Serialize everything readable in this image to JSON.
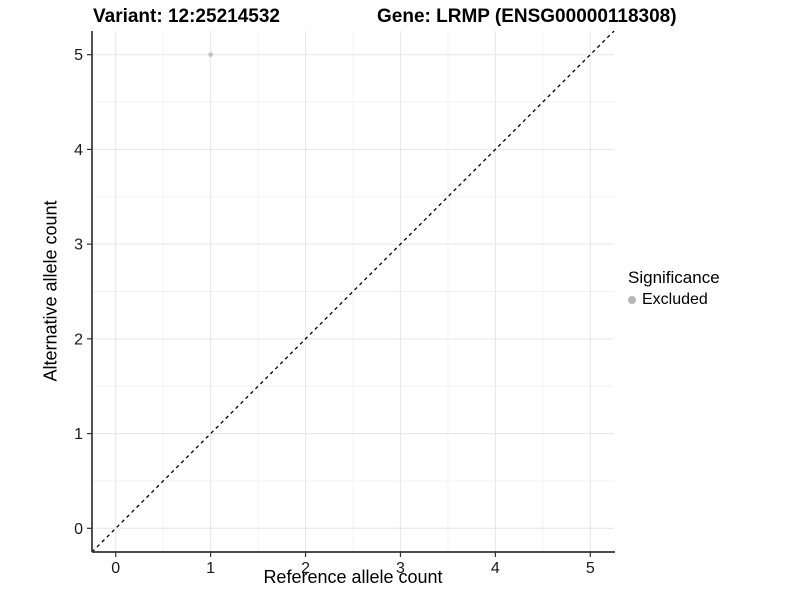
{
  "title": {
    "variant": "Variant: 12:25214532",
    "gene": "Gene: LRMP (ENSG00000118308)"
  },
  "chart_data": {
    "type": "scatter",
    "title": "Variant: 12:25214532   Gene: LRMP (ENSG00000118308)",
    "xlabel": "Reference allele count",
    "ylabel": "Alternative allele count",
    "xlim": [
      -0.25,
      5.25
    ],
    "ylim": [
      -0.25,
      5.25
    ],
    "xticks": [
      0,
      1,
      2,
      3,
      4,
      5
    ],
    "yticks": [
      0,
      1,
      2,
      3,
      4,
      5
    ],
    "grid": {
      "major": true,
      "minor": true
    },
    "series": [
      {
        "name": "Excluded",
        "marker": "circle",
        "color": "#c2c2c2",
        "points": [
          {
            "x": 1,
            "y": 5
          }
        ]
      }
    ],
    "reference_line": {
      "kind": "y=x",
      "style": "dashed",
      "color": "#000000"
    },
    "legend": {
      "title": "Significance",
      "position": "right",
      "entries": [
        {
          "label": "Excluded",
          "color": "#b5b5b5"
        }
      ]
    },
    "colors": {
      "background": "#ffffff",
      "grid_major": "#e8e8e8",
      "grid_minor": "#f3f3f3",
      "axis_line": "#333333",
      "tick_text": "#1a1a1a"
    }
  }
}
